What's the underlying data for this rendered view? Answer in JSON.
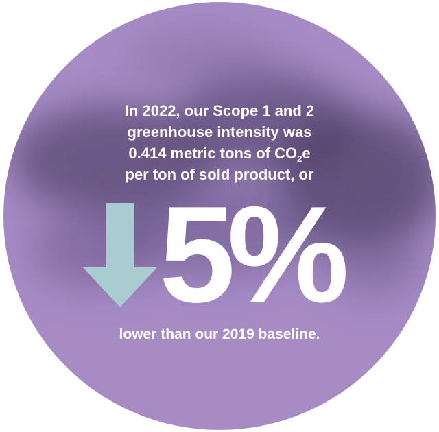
{
  "headline": {
    "line1": "In 2022, our Scope 1 and 2",
    "line2": "greenhouse intensity was",
    "line3_pre": "0.414 metric tons of CO",
    "line3_sub": "2",
    "line3_post": "e",
    "line4": "per ton of sold product, or"
  },
  "stat": {
    "value": "5%",
    "direction_icon": "arrow-down-icon"
  },
  "footer": "lower than our 2019 baseline.",
  "colors": {
    "circle": "#a68bc5",
    "arrow": "#a8cccf",
    "text": "#ffffff"
  }
}
